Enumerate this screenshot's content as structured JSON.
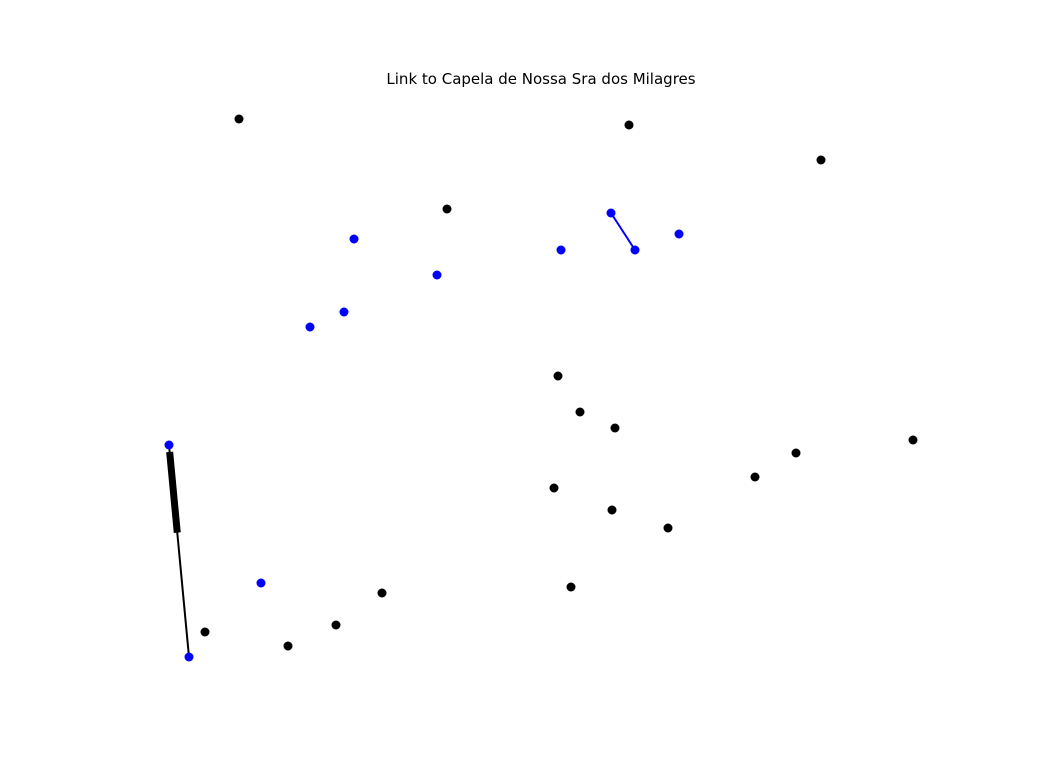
{
  "figure": {
    "title": "Link to Capela de Nossa Sra dos Milagres"
  },
  "colors": {
    "highlight": "#0000ff",
    "default": "#000000",
    "background": "#ffffff"
  },
  "graph": {
    "nodes": [
      {
        "id": "n1",
        "group": "default"
      },
      {
        "id": "n2",
        "group": "default"
      },
      {
        "id": "n3",
        "group": "default"
      },
      {
        "id": "n4",
        "group": "default"
      },
      {
        "id": "n5",
        "group": "highlight"
      },
      {
        "id": "n6",
        "group": "highlight"
      },
      {
        "id": "n7",
        "group": "highlight"
      },
      {
        "id": "n8",
        "group": "highlight"
      },
      {
        "id": "n9",
        "group": "highlight"
      },
      {
        "id": "n10",
        "group": "highlight"
      },
      {
        "id": "n11",
        "group": "highlight"
      },
      {
        "id": "n12",
        "group": "highlight"
      },
      {
        "id": "n13",
        "group": "default"
      },
      {
        "id": "n14",
        "group": "default"
      },
      {
        "id": "n15",
        "group": "default"
      },
      {
        "id": "n16",
        "group": "highlight"
      },
      {
        "id": "n17",
        "group": "default"
      },
      {
        "id": "n18",
        "group": "default"
      },
      {
        "id": "n19",
        "group": "default"
      },
      {
        "id": "n20",
        "group": "default"
      },
      {
        "id": "n21",
        "group": "default"
      },
      {
        "id": "n22",
        "group": "default"
      },
      {
        "id": "n23",
        "group": "highlight"
      },
      {
        "id": "n24",
        "group": "default"
      },
      {
        "id": "n25",
        "group": "default"
      },
      {
        "id": "n26",
        "group": "default"
      },
      {
        "id": "n27",
        "group": "highlight"
      },
      {
        "id": "n28",
        "group": "default"
      }
    ],
    "edges": [
      {
        "source": "n10",
        "target": "n11",
        "group": "highlight",
        "directed": false
      },
      {
        "source": "n27",
        "target": "n16",
        "group": "default",
        "directed": true
      }
    ]
  }
}
